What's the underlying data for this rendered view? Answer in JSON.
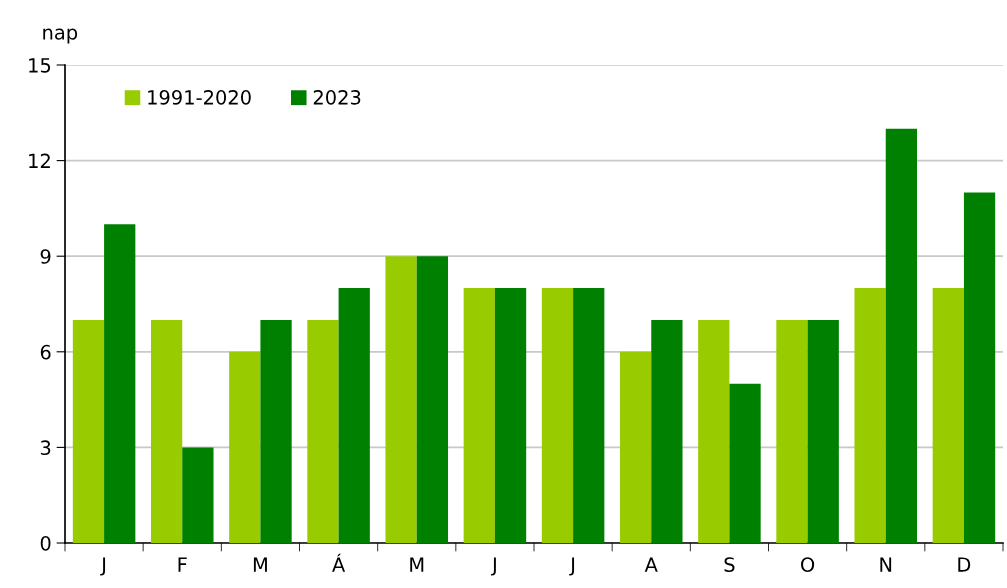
{
  "chart_data": {
    "type": "bar",
    "ylabel": "nap",
    "categories": [
      "J",
      "F",
      "M",
      "Á",
      "M",
      "J",
      "J",
      "A",
      "S",
      "O",
      "N",
      "D"
    ],
    "series": [
      {
        "name": "1991-2020",
        "color": "#99cc00",
        "values": [
          7,
          7,
          6,
          7,
          9,
          8,
          8,
          6,
          7,
          7,
          8,
          8
        ]
      },
      {
        "name": "2023",
        "color": "#008000",
        "values": [
          10,
          3,
          7,
          8,
          9,
          8,
          8,
          7,
          5,
          7,
          13,
          11
        ]
      }
    ],
    "ylim": [
      0,
      15
    ],
    "yticks": [
      0,
      3,
      6,
      9,
      12,
      15
    ],
    "grid": "y",
    "legend": "top left"
  }
}
